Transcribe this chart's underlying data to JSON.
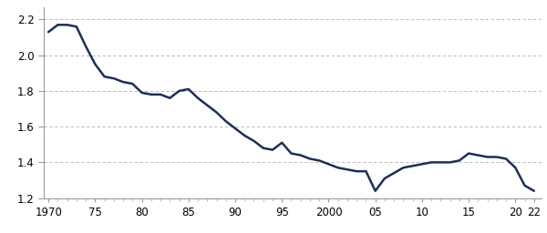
{
  "years": [
    1970,
    1971,
    1972,
    1973,
    1974,
    1975,
    1976,
    1977,
    1978,
    1979,
    1980,
    1981,
    1982,
    1983,
    1984,
    1985,
    1986,
    1987,
    1988,
    1989,
    1990,
    1991,
    1992,
    1993,
    1994,
    1995,
    1996,
    1997,
    1998,
    1999,
    2000,
    2001,
    2002,
    2003,
    2004,
    2005,
    2006,
    2007,
    2008,
    2009,
    2010,
    2011,
    2012,
    2013,
    2014,
    2015,
    2016,
    2017,
    2018,
    2019,
    2020,
    2021,
    2022
  ],
  "tfr": [
    2.13,
    2.17,
    2.17,
    2.16,
    2.05,
    1.95,
    1.88,
    1.87,
    1.85,
    1.84,
    1.79,
    1.78,
    1.78,
    1.76,
    1.8,
    1.81,
    1.76,
    1.72,
    1.68,
    1.63,
    1.59,
    1.55,
    1.52,
    1.48,
    1.47,
    1.51,
    1.45,
    1.44,
    1.42,
    1.41,
    1.39,
    1.37,
    1.36,
    1.35,
    1.35,
    1.24,
    1.31,
    1.34,
    1.37,
    1.38,
    1.39,
    1.4,
    1.4,
    1.4,
    1.41,
    1.45,
    1.44,
    1.43,
    1.43,
    1.42,
    1.37,
    1.27,
    1.24
  ],
  "line_color": "#1a2f5a",
  "line_width": 1.8,
  "background_color": "#ffffff",
  "grid_color": "#b0b0b0",
  "yticks": [
    1.2,
    1.4,
    1.6,
    1.8,
    2.0,
    2.2
  ],
  "xtick_labels": [
    "1970",
    "75",
    "80",
    "85",
    "90",
    "95",
    "2000",
    "05",
    "10",
    "15",
    "20",
    "22"
  ],
  "xtick_positions": [
    1970,
    1975,
    1980,
    1985,
    1990,
    1995,
    2000,
    2005,
    2010,
    2015,
    2020,
    2022
  ],
  "ylim": [
    1.2,
    2.27
  ],
  "xlim": [
    1969.5,
    2022.8
  ]
}
